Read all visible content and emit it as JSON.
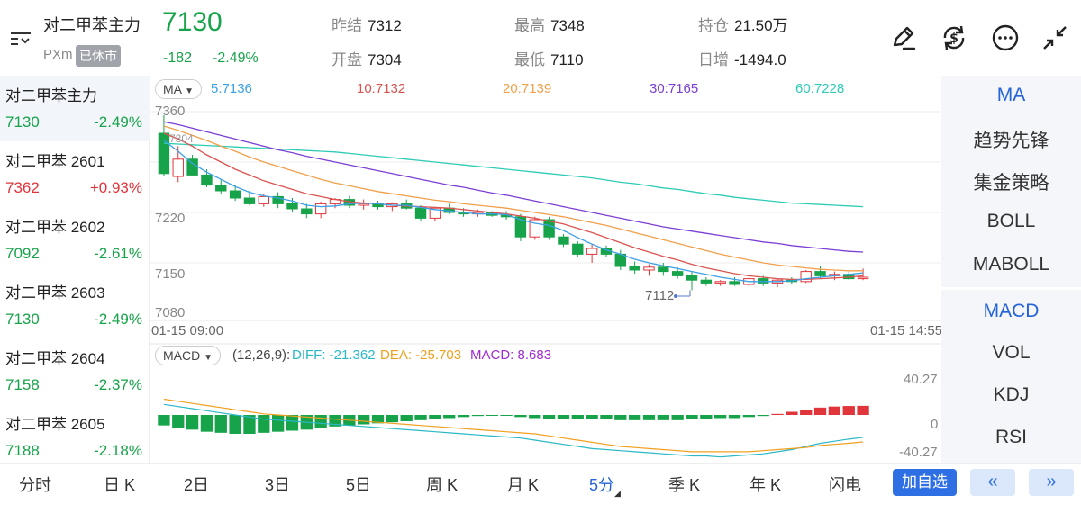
{
  "header": {
    "name": "对二甲苯主力",
    "code": "PXm",
    "status_badge": "已休市",
    "price": "7130",
    "change": "-182",
    "change_pct": "-2.49%",
    "stats": [
      {
        "label": "昨结",
        "value": "7312",
        "color": "neutral"
      },
      {
        "label": "最高",
        "value": "7348",
        "color": "up"
      },
      {
        "label": "持仓",
        "value": "21.50万",
        "color": "neutral"
      },
      {
        "label": "开盘",
        "value": "7304",
        "color": "down"
      },
      {
        "label": "最低",
        "value": "7110",
        "color": "down"
      },
      {
        "label": "日增",
        "value": "-1494.0",
        "color": "neutral"
      }
    ],
    "icons": [
      "draw-pen-icon",
      "currency-exchange-icon",
      "more-options-icon",
      "collapse-arrows-icon"
    ]
  },
  "sidebar": {
    "items": [
      {
        "name": "对二甲苯主力",
        "price": "7130",
        "pct": "-2.49%",
        "dir": "down",
        "active": true
      },
      {
        "name": "对二甲苯 2601",
        "price": "7362",
        "pct": "+0.93%",
        "dir": "up",
        "active": false
      },
      {
        "name": "对二甲苯 2602",
        "price": "7092",
        "pct": "-2.61%",
        "dir": "down",
        "active": false
      },
      {
        "name": "对二甲苯 2603",
        "price": "7130",
        "pct": "-2.49%",
        "dir": "down",
        "active": false
      },
      {
        "name": "对二甲苯 2604",
        "price": "7158",
        "pct": "-2.37%",
        "dir": "down",
        "active": false
      },
      {
        "name": "对二甲苯 2605",
        "price": "7188",
        "pct": "-2.18%",
        "dir": "down",
        "active": false
      }
    ]
  },
  "indicators": {
    "main": [
      {
        "label": "MA",
        "active": true
      },
      {
        "label": "趋势先锋",
        "active": false
      },
      {
        "label": "集金策略",
        "active": false
      },
      {
        "label": "BOLL",
        "active": false
      },
      {
        "label": "MABOLL",
        "active": false
      }
    ],
    "sub": [
      {
        "label": "MACD",
        "active": true
      },
      {
        "label": "VOL",
        "active": false
      },
      {
        "label": "KDJ",
        "active": false
      },
      {
        "label": "RSI",
        "active": false
      }
    ]
  },
  "chart": {
    "ma_selector": "MA",
    "ma_legend": [
      {
        "text": "5:7136",
        "color": "#3ba0e6"
      },
      {
        "text": "10:7132",
        "color": "#d9534f"
      },
      {
        "text": "20:7139",
        "color": "#f0a04b"
      },
      {
        "text": "30:7165",
        "color": "#7b3fd3"
      },
      {
        "text": "60:7228",
        "color": "#2ecbb6"
      }
    ],
    "y_labels": [
      "7360",
      "7220",
      "7150",
      "7080"
    ],
    "x_start": "01-15 09:00",
    "x_end": "01-15 14:55",
    "min_marker": "7112",
    "open_marker": "7304",
    "macd_selector": "MACD",
    "macd_params": "(12,26,9):",
    "macd_diff": "DIFF: -21.362",
    "macd_dea": "DEA: -25.703",
    "macd_val": "MACD: 8.683",
    "macd_y": [
      "40.27",
      "0",
      "-40.27"
    ],
    "colors": {
      "up": "#e0353b",
      "down": "#17a34a",
      "diff": "#2ab8c6",
      "dea": "#f0a020"
    }
  },
  "chart_data": {
    "type": "candlestick",
    "price_axis": [
      7080,
      7360
    ],
    "candles": [
      [
        7330,
        7355,
        7270,
        7274
      ],
      [
        7270,
        7312,
        7262,
        7294
      ],
      [
        7294,
        7300,
        7270,
        7272
      ],
      [
        7272,
        7280,
        7255,
        7258
      ],
      [
        7258,
        7265,
        7245,
        7250
      ],
      [
        7250,
        7258,
        7236,
        7240
      ],
      [
        7240,
        7250,
        7230,
        7232
      ],
      [
        7232,
        7245,
        7228,
        7242
      ],
      [
        7242,
        7248,
        7226,
        7232
      ],
      [
        7232,
        7240,
        7220,
        7225
      ],
      [
        7225,
        7232,
        7212,
        7218
      ],
      [
        7218,
        7235,
        7212,
        7232
      ],
      [
        7232,
        7240,
        7226,
        7238
      ],
      [
        7238,
        7243,
        7226,
        7230
      ],
      [
        7230,
        7238,
        7224,
        7232
      ],
      [
        7232,
        7236,
        7224,
        7228
      ],
      [
        7228,
        7234,
        7222,
        7232
      ],
      [
        7232,
        7238,
        7224,
        7226
      ],
      [
        7226,
        7230,
        7208,
        7212
      ],
      [
        7212,
        7228,
        7208,
        7226
      ],
      [
        7226,
        7232,
        7218,
        7220
      ],
      [
        7220,
        7226,
        7214,
        7218
      ],
      [
        7218,
        7224,
        7214,
        7220
      ],
      [
        7220,
        7222,
        7214,
        7216
      ],
      [
        7216,
        7222,
        7210,
        7214
      ],
      [
        7214,
        7218,
        7180,
        7186
      ],
      [
        7186,
        7214,
        7182,
        7210
      ],
      [
        7210,
        7214,
        7182,
        7186
      ],
      [
        7186,
        7190,
        7172,
        7176
      ],
      [
        7176,
        7180,
        7158,
        7162
      ],
      [
        7162,
        7176,
        7150,
        7170
      ],
      [
        7170,
        7174,
        7158,
        7162
      ],
      [
        7162,
        7168,
        7140,
        7145
      ],
      [
        7145,
        7152,
        7135,
        7140
      ],
      [
        7140,
        7148,
        7132,
        7144
      ],
      [
        7144,
        7150,
        7132,
        7138
      ],
      [
        7138,
        7144,
        7128,
        7132
      ],
      [
        7132,
        7138,
        7112,
        7126
      ],
      [
        7126,
        7130,
        7118,
        7122
      ],
      [
        7122,
        7126,
        7118,
        7124
      ],
      [
        7124,
        7130,
        7118,
        7120
      ],
      [
        7120,
        7130,
        7116,
        7128
      ],
      [
        7128,
        7132,
        7118,
        7122
      ],
      [
        7122,
        7128,
        7116,
        7126
      ],
      [
        7126,
        7130,
        7120,
        7124
      ],
      [
        7124,
        7140,
        7122,
        7138
      ],
      [
        7138,
        7146,
        7128,
        7132
      ],
      [
        7132,
        7138,
        7126,
        7134
      ],
      [
        7134,
        7138,
        7126,
        7128
      ],
      [
        7128,
        7142,
        7126,
        7130
      ]
    ],
    "ma5": [
      7320,
      7305,
      7288,
      7276,
      7266,
      7256,
      7248,
      7243,
      7240,
      7236,
      7230,
      7228,
      7229,
      7232,
      7233,
      7232,
      7230,
      7230,
      7227,
      7224,
      7222,
      7220,
      7218,
      7218,
      7217,
      7210,
      7205,
      7202,
      7195,
      7185,
      7176,
      7168,
      7162,
      7155,
      7150,
      7146,
      7142,
      7138,
      7134,
      7130,
      7127,
      7124,
      7124,
      7124,
      7125,
      7128,
      7130,
      7132,
      7134,
      7136
    ],
    "ma10": [
      7330,
      7322,
      7312,
      7300,
      7290,
      7280,
      7272,
      7264,
      7258,
      7252,
      7246,
      7242,
      7238,
      7235,
      7233,
      7232,
      7230,
      7229,
      7228,
      7227,
      7226,
      7224,
      7222,
      7220,
      7218,
      7215,
      7212,
      7208,
      7204,
      7198,
      7192,
      7185,
      7178,
      7171,
      7165,
      7159,
      7154,
      7148,
      7143,
      7139,
      7135,
      7132,
      7130,
      7128,
      7127,
      7127,
      7128,
      7129,
      7130,
      7132
    ],
    "ma20": [
      7340,
      7334,
      7327,
      7320,
      7312,
      7305,
      7297,
      7290,
      7284,
      7278,
      7272,
      7266,
      7261,
      7257,
      7253,
      7249,
      7246,
      7243,
      7240,
      7237,
      7235,
      7232,
      7230,
      7228,
      7226,
      7223,
      7220,
      7217,
      7214,
      7210,
      7206,
      7202,
      7197,
      7192,
      7187,
      7182,
      7177,
      7172,
      7167,
      7162,
      7158,
      7154,
      7150,
      7147,
      7145,
      7143,
      7141,
      7140,
      7139,
      7139
    ],
    "ma30": [
      7346,
      7342,
      7337,
      7332,
      7327,
      7322,
      7317,
      7312,
      7307,
      7303,
      7298,
      7294,
      7290,
      7286,
      7282,
      7278,
      7274,
      7270,
      7266,
      7262,
      7258,
      7255,
      7251,
      7247,
      7244,
      7240,
      7236,
      7232,
      7228,
      7224,
      7220,
      7216,
      7212,
      7208,
      7204,
      7200,
      7197,
      7194,
      7191,
      7188,
      7185,
      7182,
      7179,
      7177,
      7174,
      7172,
      7170,
      7168,
      7166,
      7165
    ],
    "ma60": [
      7316,
      7315,
      7314,
      7313,
      7312,
      7311,
      7310,
      7309,
      7308,
      7307,
      7306,
      7305,
      7304,
      7302,
      7300,
      7298,
      7296,
      7294,
      7292,
      7290,
      7288,
      7286,
      7284,
      7282,
      7280,
      7278,
      7276,
      7274,
      7272,
      7270,
      7268,
      7265,
      7262,
      7260,
      7257,
      7254,
      7252,
      7249,
      7246,
      7244,
      7241,
      7239,
      7237,
      7235,
      7233,
      7232,
      7231,
      7230,
      7229,
      7228
    ],
    "macd_axis": [
      -40.27,
      40.27
    ],
    "macd_hist": [
      -10,
      -12,
      -14,
      -16,
      -17,
      -18,
      -18,
      -17,
      -16,
      -15,
      -14,
      -12,
      -11,
      -10,
      -9,
      -8,
      -7,
      -6,
      -5,
      -4,
      -3,
      -2,
      -1,
      -0.5,
      -0.5,
      -2,
      -3,
      -4,
      -4,
      -4,
      -4,
      -4,
      -5,
      -5,
      -5,
      -5,
      -5,
      -4,
      -4,
      -3,
      -3,
      -2,
      -1,
      1,
      3,
      5,
      7,
      8,
      8.5,
      8.683
    ],
    "macd_diff": [
      10,
      8,
      6,
      4,
      2,
      0,
      -2,
      -4,
      -5,
      -6,
      -7,
      -8,
      -9,
      -10,
      -11,
      -12,
      -13,
      -14,
      -15,
      -16,
      -17,
      -18,
      -19,
      -20,
      -21,
      -22,
      -24,
      -26,
      -28,
      -30,
      -32,
      -33,
      -34,
      -35,
      -36,
      -37,
      -38,
      -39,
      -39,
      -40,
      -39,
      -38,
      -37,
      -35,
      -33,
      -30,
      -27,
      -25,
      -23,
      -21.362
    ],
    "macd_dea": [
      15,
      13,
      11,
      9,
      7,
      5,
      3,
      1,
      0,
      -1,
      -2,
      -3,
      -4,
      -5,
      -6,
      -7,
      -8,
      -9,
      -10,
      -11,
      -12,
      -13,
      -14,
      -15,
      -16,
      -17,
      -18,
      -20,
      -22,
      -24,
      -26,
      -28,
      -30,
      -31,
      -32,
      -33,
      -34,
      -35,
      -35,
      -35,
      -35,
      -35,
      -34,
      -33,
      -32,
      -31,
      -29,
      -28,
      -27,
      -25.703
    ]
  },
  "bottom": {
    "tabs": [
      {
        "label": "分时",
        "active": false
      },
      {
        "label": "日 K",
        "active": false
      },
      {
        "label": "2日",
        "active": false
      },
      {
        "label": "3日",
        "active": false
      },
      {
        "label": "5日",
        "active": false
      },
      {
        "label": "周 K",
        "active": false
      },
      {
        "label": "月 K",
        "active": false
      },
      {
        "label": "5分",
        "active": true
      },
      {
        "label": "季 K",
        "active": false
      },
      {
        "label": "年 K",
        "active": false
      },
      {
        "label": "闪电",
        "active": false
      }
    ],
    "add_button": "加自选",
    "prev_glyph": "«",
    "next_glyph": "»"
  }
}
